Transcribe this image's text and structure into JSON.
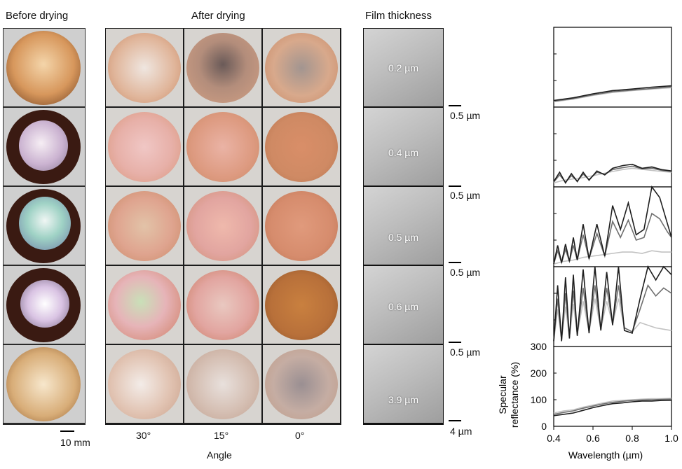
{
  "headers": {
    "before": "Before drying",
    "after": "After drying",
    "thickness": "Film thickness"
  },
  "before_scale": "10 mm",
  "angles": [
    "30°",
    "15°",
    "0°"
  ],
  "angle_title": "Angle",
  "thickness_values": [
    "0.2 µm",
    "0.4 µm",
    "0.5 µm",
    "0.6 µm",
    "3.9 µm"
  ],
  "sem_scales": [
    "0.5 µm",
    "0.5 µm",
    "0.5 µm",
    "0.5 µm",
    "4 µm"
  ],
  "colors": {
    "petri_amber": "#c98b55",
    "dark_solution": "#3a1a12",
    "orange_film": "#d9967a",
    "pink_film": "#e2a5a0",
    "curve_30": "#1e1e1e",
    "curve_15": "#6f6f6f",
    "curve_0": "#c2c2c2"
  },
  "chart_data": {
    "type": "line",
    "xlabel": "Wavelength (µm)",
    "ylabel": "Specular reflectance (%)",
    "xlim": [
      0.4,
      1.0
    ],
    "ylim": [
      0,
      300
    ],
    "xticks": [
      "0.4",
      "0.6",
      "0.8",
      "1.0"
    ],
    "yticks": [
      "0",
      "100",
      "200",
      "300"
    ],
    "panels": [
      {
        "series": [
          {
            "x": [
              0.4,
              0.5,
              0.6,
              0.7,
              0.8,
              0.9,
              1.0
            ],
            "y": [
              25,
              35,
              50,
              62,
              68,
              75,
              80
            ]
          },
          {
            "x": [
              0.4,
              0.5,
              0.6,
              0.7,
              0.8,
              0.9,
              1.0
            ],
            "y": [
              22,
              32,
              46,
              58,
              64,
              70,
              76
            ]
          },
          {
            "x": [
              0.4,
              0.5,
              0.6,
              0.7,
              0.8,
              0.9,
              1.0
            ],
            "y": [
              20,
              30,
              44,
              55,
              62,
              68,
              73
            ]
          }
        ]
      },
      {
        "series": [
          {
            "x": [
              0.4,
              0.43,
              0.46,
              0.49,
              0.52,
              0.55,
              0.58,
              0.62,
              0.66,
              0.7,
              0.75,
              0.8,
              0.85,
              0.9,
              0.95,
              1.0
            ],
            "y": [
              20,
              55,
              15,
              50,
              20,
              55,
              25,
              60,
              45,
              70,
              80,
              85,
              70,
              75,
              65,
              60
            ]
          },
          {
            "x": [
              0.4,
              0.43,
              0.46,
              0.49,
              0.52,
              0.55,
              0.58,
              0.62,
              0.66,
              0.7,
              0.75,
              0.8,
              0.85,
              0.9,
              0.95,
              1.0
            ],
            "y": [
              18,
              45,
              18,
              42,
              22,
              48,
              28,
              55,
              48,
              65,
              72,
              78,
              68,
              70,
              62,
              58
            ]
          },
          {
            "x": [
              0.4,
              0.45,
              0.5,
              0.55,
              0.6,
              0.65,
              0.7,
              0.75,
              0.8,
              0.85,
              0.9,
              0.95,
              1.0
            ],
            "y": [
              15,
              25,
              30,
              35,
              42,
              50,
              58,
              65,
              70,
              66,
              62,
              58,
              55
            ]
          }
        ]
      },
      {
        "series": [
          {
            "x": [
              0.4,
              0.42,
              0.44,
              0.46,
              0.48,
              0.5,
              0.52,
              0.55,
              0.58,
              0.62,
              0.66,
              0.7,
              0.74,
              0.78,
              0.82,
              0.86,
              0.9,
              0.94,
              0.98,
              1.0
            ],
            "y": [
              10,
              80,
              15,
              85,
              20,
              110,
              25,
              160,
              30,
              160,
              40,
              230,
              140,
              240,
              120,
              140,
              300,
              260,
              160,
              110
            ]
          },
          {
            "x": [
              0.4,
              0.42,
              0.44,
              0.46,
              0.48,
              0.5,
              0.52,
              0.55,
              0.58,
              0.62,
              0.66,
              0.7,
              0.74,
              0.78,
              0.82,
              0.86,
              0.9,
              0.94,
              0.98,
              1.0
            ],
            "y": [
              10,
              60,
              15,
              65,
              20,
              80,
              25,
              120,
              30,
              125,
              40,
              170,
              110,
              175,
              100,
              110,
              200,
              180,
              130,
              110
            ]
          },
          {
            "x": [
              0.4,
              0.45,
              0.5,
              0.55,
              0.6,
              0.65,
              0.7,
              0.75,
              0.8,
              0.85,
              0.9,
              0.95,
              1.0
            ],
            "y": [
              10,
              20,
              25,
              35,
              40,
              45,
              50,
              55,
              55,
              50,
              60,
              55,
              55
            ]
          }
        ]
      },
      {
        "series": [
          {
            "x": [
              0.4,
              0.42,
              0.44,
              0.46,
              0.48,
              0.5,
              0.52,
              0.55,
              0.58,
              0.61,
              0.64,
              0.67,
              0.7,
              0.73,
              0.76,
              0.8,
              0.84,
              0.88,
              0.92,
              0.96,
              1.0
            ],
            "y": [
              20,
              230,
              20,
              260,
              30,
              270,
              40,
              290,
              50,
              300,
              60,
              280,
              80,
              300,
              60,
              50,
              180,
              300,
              250,
              300,
              270
            ]
          },
          {
            "x": [
              0.4,
              0.42,
              0.44,
              0.46,
              0.48,
              0.5,
              0.52,
              0.55,
              0.58,
              0.61,
              0.64,
              0.67,
              0.7,
              0.73,
              0.76,
              0.8,
              0.84,
              0.88,
              0.92,
              0.96,
              1.0
            ],
            "y": [
              20,
              180,
              25,
              200,
              35,
              210,
              45,
              220,
              55,
              230,
              65,
              220,
              85,
              230,
              70,
              55,
              140,
              230,
              190,
              220,
              200
            ]
          },
          {
            "x": [
              0.4,
              0.42,
              0.44,
              0.46,
              0.48,
              0.5,
              0.52,
              0.55,
              0.58,
              0.61,
              0.64,
              0.67,
              0.7,
              0.73,
              0.76,
              0.8,
              0.84,
              0.88,
              0.92,
              0.96,
              1.0
            ],
            "y": [
              20,
              140,
              25,
              150,
              35,
              160,
              45,
              170,
              55,
              180,
              65,
              170,
              85,
              180,
              70,
              55,
              90,
              80,
              70,
              65,
              60
            ]
          }
        ]
      },
      {
        "series": [
          {
            "x": [
              0.4,
              0.45,
              0.5,
              0.55,
              0.6,
              0.65,
              0.7,
              0.75,
              0.8,
              0.85,
              0.9,
              0.95,
              1.0
            ],
            "y": [
              40,
              45,
              50,
              60,
              70,
              78,
              85,
              88,
              92,
              95,
              95,
              97,
              98
            ]
          },
          {
            "x": [
              0.4,
              0.45,
              0.5,
              0.55,
              0.6,
              0.65,
              0.7,
              0.75,
              0.8,
              0.85,
              0.9,
              0.95,
              1.0
            ],
            "y": [
              45,
              52,
              58,
              68,
              76,
              84,
              90,
              94,
              97,
              99,
              100,
              101,
              102
            ]
          },
          {
            "x": [
              0.4,
              0.45,
              0.5,
              0.55,
              0.6,
              0.65,
              0.7,
              0.75,
              0.8,
              0.85,
              0.9,
              0.95,
              1.0
            ],
            "y": [
              50,
              58,
              62,
              72,
              80,
              88,
              95,
              98,
              100,
              102,
              104,
              104,
              105
            ]
          }
        ]
      }
    ]
  }
}
